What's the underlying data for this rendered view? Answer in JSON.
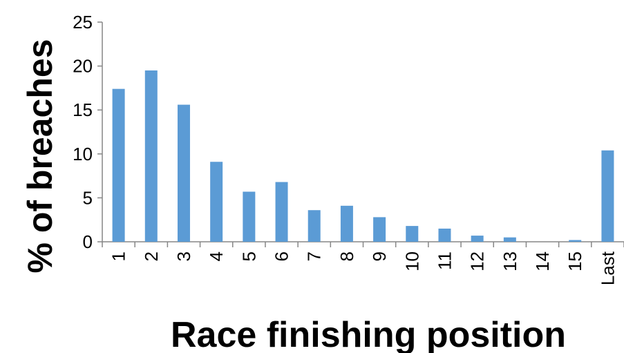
{
  "chart_data": {
    "type": "bar",
    "title": "",
    "xlabel": "Race finishing position",
    "ylabel": "% of breaches",
    "categories": [
      "1",
      "2",
      "3",
      "4",
      "5",
      "6",
      "7",
      "8",
      "9",
      "10",
      "11",
      "12",
      "13",
      "14",
      "15",
      "Last"
    ],
    "values": [
      17.4,
      19.5,
      15.6,
      9.1,
      5.7,
      6.8,
      3.6,
      4.1,
      2.8,
      1.8,
      1.5,
      0.7,
      0.5,
      0,
      0.2,
      10.4
    ],
    "ylim": [
      0,
      25
    ],
    "yticks": [
      0,
      5,
      10,
      15,
      20,
      25
    ],
    "grid": false,
    "legend": "none",
    "bar_color": "#5B9BD5"
  }
}
